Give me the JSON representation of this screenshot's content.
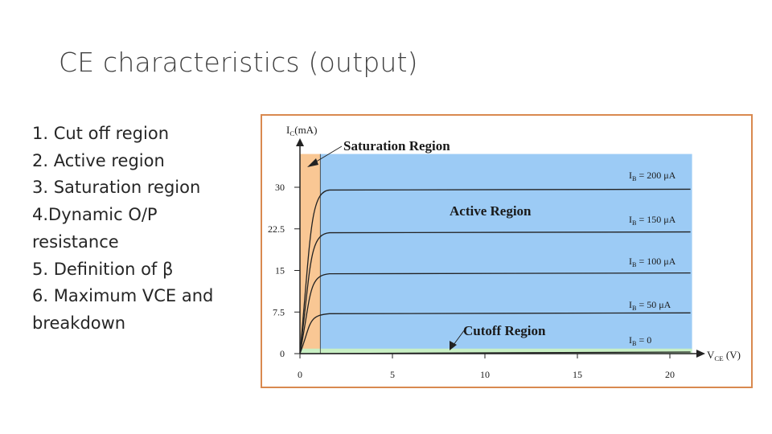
{
  "slide": {
    "title": "CE characteristics (output)"
  },
  "bullets": [
    "1. Cut off region",
    "2. Active region",
    "3. Saturation region",
    "4.Dynamic O/P resistance",
    "5. Definition of β",
    "6. Maximum VCE and breakdown"
  ],
  "figure": {
    "y_axis_label": {
      "main": "I",
      "sub": "C",
      "rest": "(mA)"
    },
    "x_axis_label": {
      "main": "V",
      "sub": "CE",
      "rest": " (V)"
    },
    "region_labels": {
      "saturation": "Saturation Region",
      "active": "Active Region",
      "cutoff": "Cutoff Region"
    },
    "colors": {
      "saturation_fill": "#f9c794",
      "active_fill": "#9ccbf5",
      "cutoff_fill": "#c9f0c4",
      "frame_border": "#d9894f"
    }
  },
  "chart_data": {
    "type": "line",
    "xlabel": "VCE (V)",
    "ylabel": "IC(mA)",
    "xlim": [
      0,
      21.5
    ],
    "ylim": [
      0,
      36
    ],
    "x_ticks": [
      "0",
      "5",
      "10",
      "15",
      "20"
    ],
    "y_ticks": [
      "0",
      "7.5",
      "15",
      "22.5",
      "30"
    ],
    "series": [
      {
        "name": "IB = 200 μA",
        "label_main": "I",
        "label_sub": "B",
        "label_rest": " = 200 μA",
        "values_saturated": 29.5
      },
      {
        "name": "IB = 150 μA",
        "label_main": "I",
        "label_sub": "B",
        "label_rest": " = 150 μA",
        "values_saturated": 21.8
      },
      {
        "name": "IB = 100 μA",
        "label_main": "I",
        "label_sub": "B",
        "label_rest": " = 100 μA",
        "values_saturated": 14.4
      },
      {
        "name": "IB = 50 μA",
        "label_main": "I",
        "label_sub": "B",
        "label_rest": " = 50 μA",
        "values_saturated": 7.2
      },
      {
        "name": "IB = 0",
        "label_main": "I",
        "label_sub": "B",
        "label_rest": " = 0",
        "values_saturated": 0.4
      }
    ],
    "regions": [
      {
        "name": "Saturation Region",
        "x_range": [
          0,
          1.1
        ]
      },
      {
        "name": "Active Region",
        "x_range": [
          1.1,
          21.2
        ]
      },
      {
        "name": "Cutoff Region",
        "y_range": [
          0,
          0.9
        ]
      }
    ]
  }
}
